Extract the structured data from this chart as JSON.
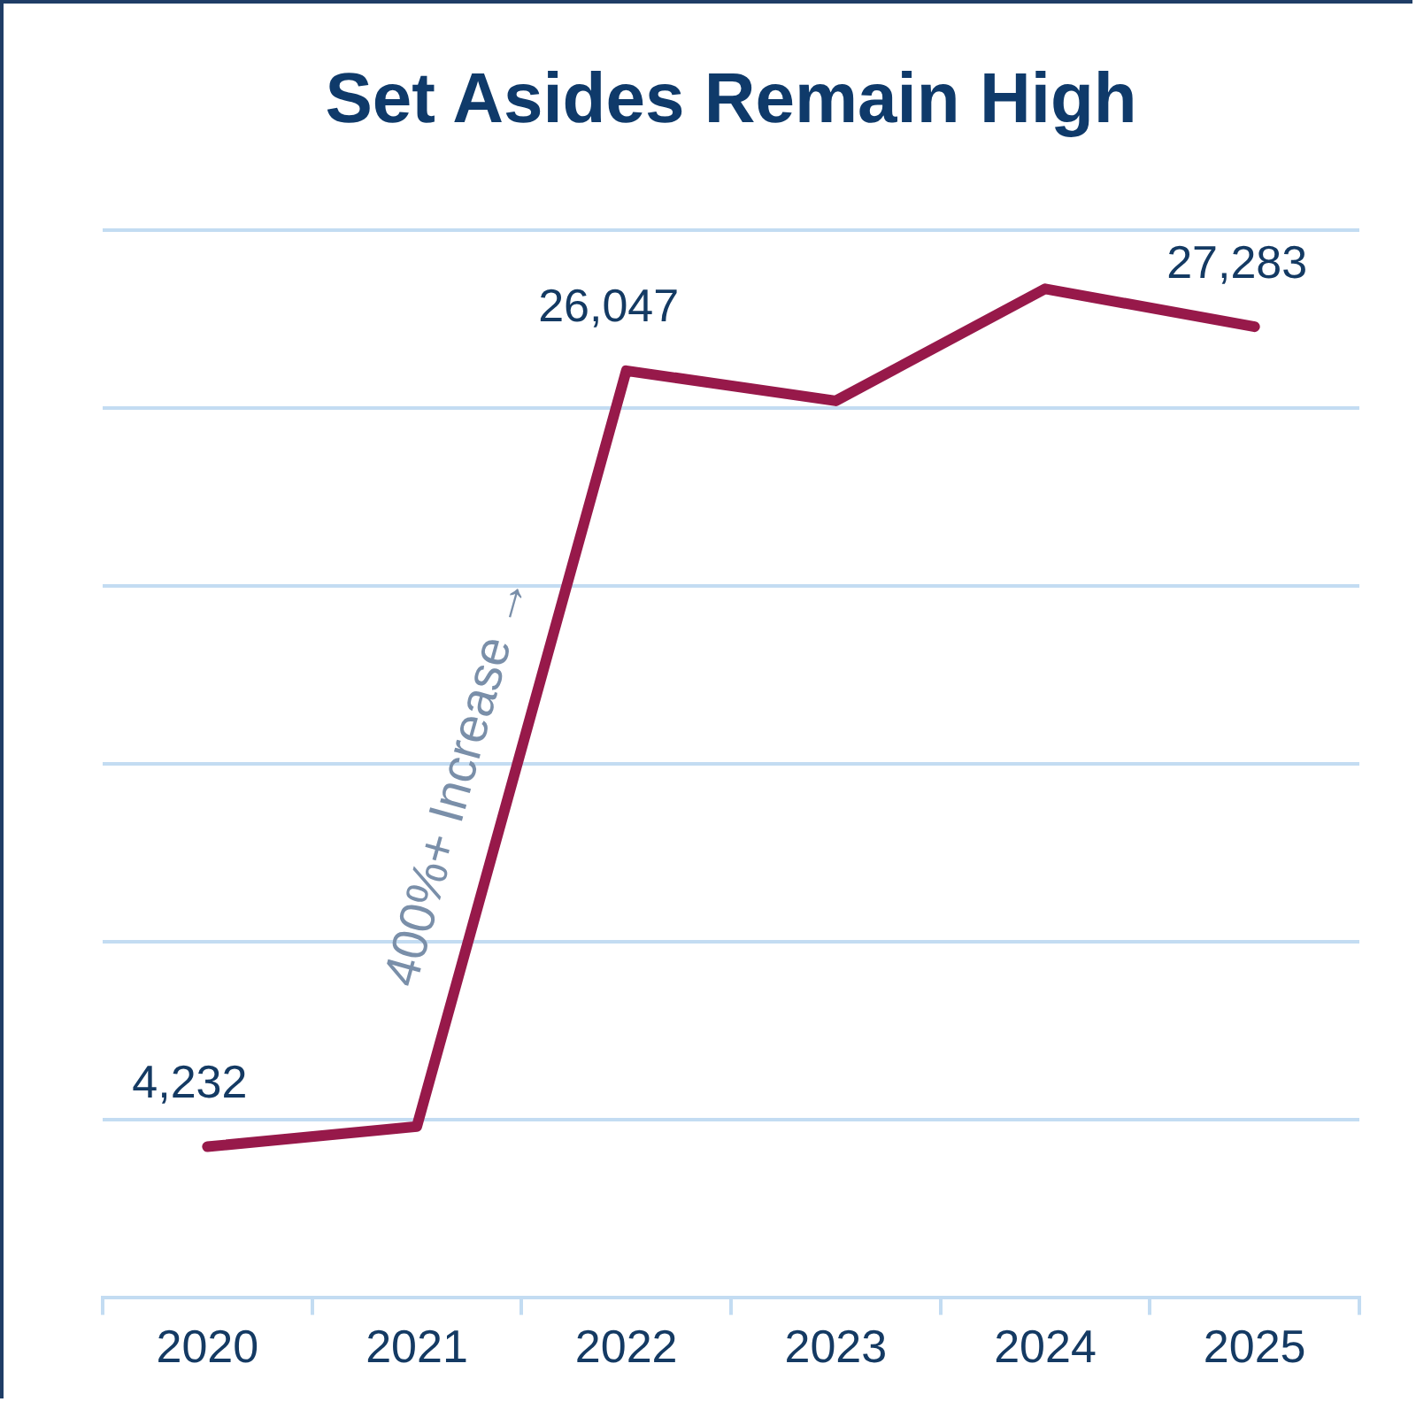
{
  "chart_data": {
    "type": "line",
    "title": "Set Asides Remain High",
    "categories": [
      "2020",
      "2021",
      "2022",
      "2023",
      "2024",
      "2025"
    ],
    "series": [
      {
        "color": "#97194a",
        "values": [
          4232,
          4800,
          26047,
          25200,
          28350,
          27283
        ],
        "value_labels": [
          "4,232",
          null,
          "26,047",
          null,
          null,
          "27,283"
        ]
      }
    ],
    "ylim": [
      0,
      30000
    ],
    "yticks": [
      {
        "value": 0,
        "label": null
      },
      {
        "value": 5000,
        "label": null
      },
      {
        "value": 10000,
        "label": null
      },
      {
        "value": 15000,
        "label": null
      },
      {
        "value": 20000,
        "label": null
      },
      {
        "value": 25000,
        "label": null
      },
      {
        "value": 30000,
        "label": null
      }
    ],
    "grid": "y",
    "legend": false,
    "marker": "none",
    "line_style": "solid",
    "tick_labels": "x",
    "annotations": [
      "400%+ Increase →"
    ]
  }
}
